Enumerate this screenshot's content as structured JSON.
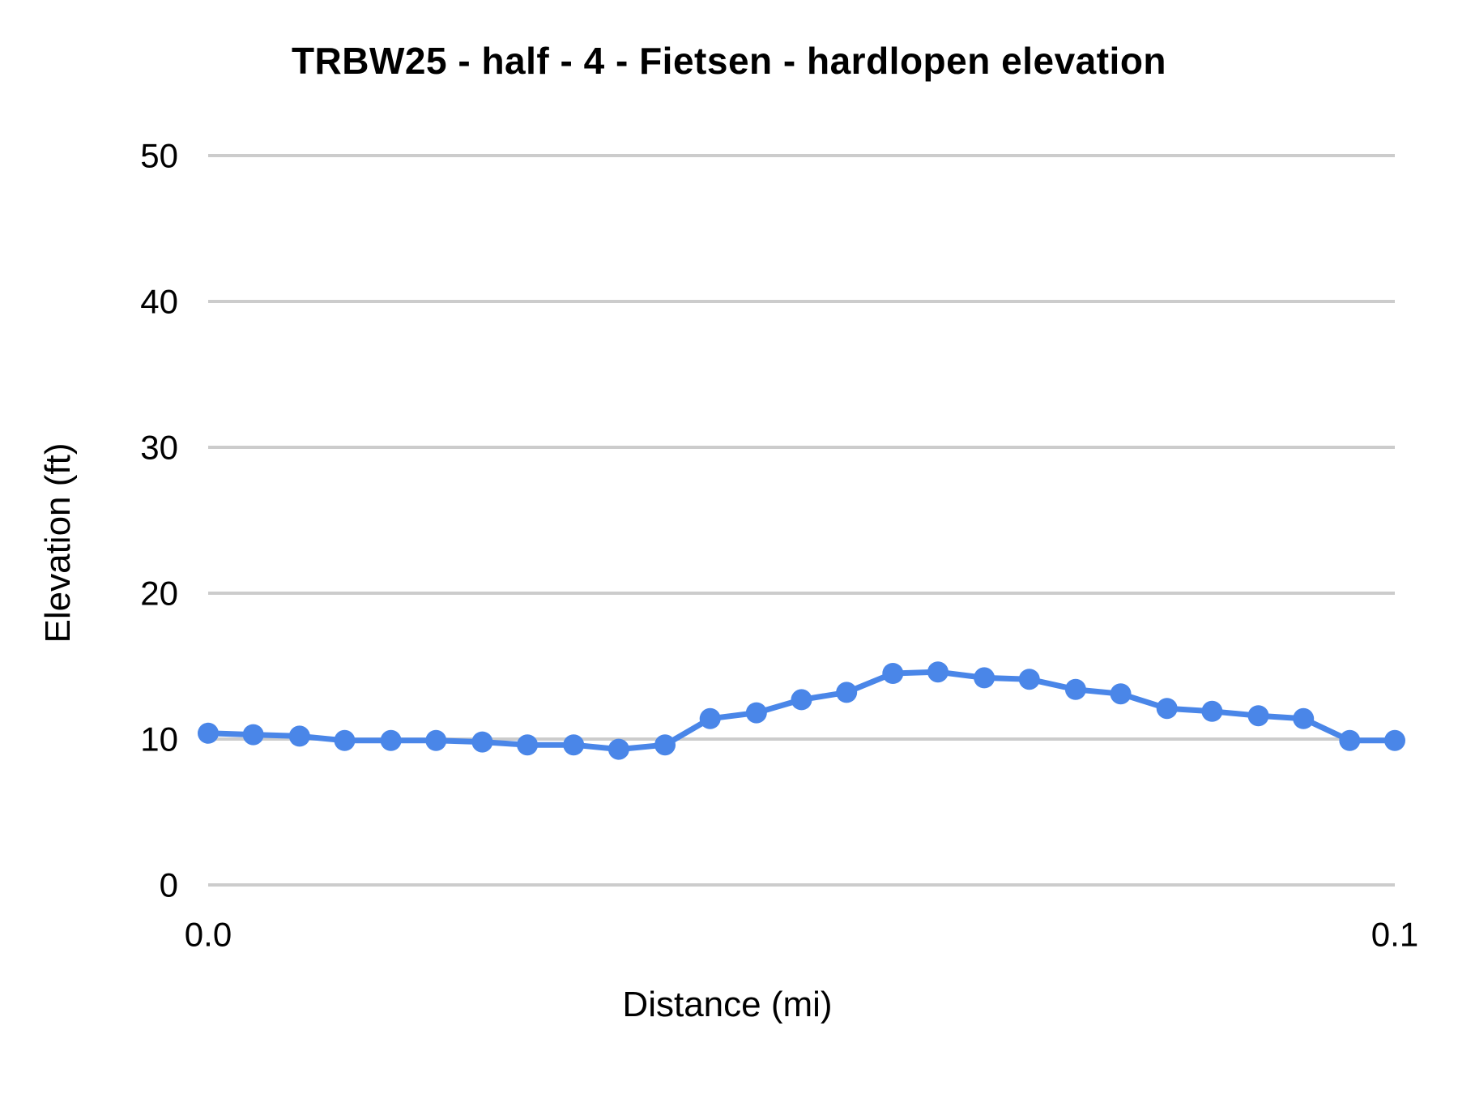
{
  "page": {
    "background": "#ffffff"
  },
  "chart_data": {
    "type": "line",
    "title": "TRBW25 - half - 4 - Fietsen - hardlopen elevation",
    "xlabel": "Distance (mi)",
    "ylabel": "Elevation (ft)",
    "x": [
      0.0,
      0.0038,
      0.0077,
      0.0115,
      0.0154,
      0.0192,
      0.0231,
      0.0269,
      0.0308,
      0.0346,
      0.0385,
      0.0423,
      0.0462,
      0.05,
      0.0538,
      0.0577,
      0.0615,
      0.0654,
      0.0692,
      0.0731,
      0.0769,
      0.0808,
      0.0846,
      0.0885,
      0.0923,
      0.0962,
      0.1
    ],
    "series": [
      {
        "name": "elevation",
        "color": "#4a86e8",
        "values": [
          10.4,
          10.3,
          10.2,
          9.9,
          9.9,
          9.9,
          9.8,
          9.6,
          9.6,
          9.3,
          9.6,
          11.4,
          11.8,
          12.7,
          13.2,
          14.5,
          14.6,
          14.2,
          14.1,
          13.4,
          13.1,
          12.1,
          11.9,
          11.6,
          11.4,
          9.9,
          9.9
        ]
      }
    ],
    "xlim": [
      0.0,
      0.1
    ],
    "ylim": [
      0,
      50
    ],
    "y_ticks": [
      {
        "value": 0,
        "label": "0"
      },
      {
        "value": 10,
        "label": "10"
      },
      {
        "value": 20,
        "label": "20"
      },
      {
        "value": 30,
        "label": "30"
      },
      {
        "value": 40,
        "label": "40"
      },
      {
        "value": 50,
        "label": "50"
      }
    ],
    "x_ticks": [
      {
        "value": 0.0,
        "label": "0.0"
      },
      {
        "value": 0.1,
        "label": "0.1"
      }
    ],
    "grid": true,
    "legend": false,
    "gridline_color": "#cccccc",
    "text_color": "#000000",
    "marker": "circle"
  }
}
